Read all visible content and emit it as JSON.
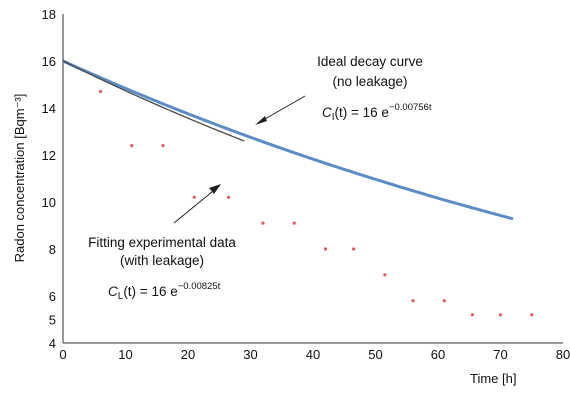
{
  "chart_data": {
    "type": "scatter",
    "xlabel": "Time [h]",
    "ylabel": "Radon concentration [Bqm⁻³]",
    "xlim": [
      0,
      80
    ],
    "ylim": [
      4,
      18
    ],
    "x_ticks": [
      "0",
      "10",
      "20",
      "30",
      "40",
      "50",
      "60",
      "70",
      "80"
    ],
    "y_ticks": [
      "4",
      "5",
      "6",
      "8",
      "10",
      "12",
      "14",
      "16",
      "18"
    ],
    "y_tick_values": [
      4,
      5,
      6,
      8,
      10,
      12,
      14,
      16,
      18
    ],
    "grid": false,
    "series": [
      {
        "kind": "points",
        "color": "#e05a5a",
        "x": [
          6,
          11,
          16,
          21,
          26.5,
          32,
          37,
          42,
          46.5,
          51.5,
          56,
          61,
          65.5,
          70,
          75
        ],
        "y": [
          14.7,
          12.4,
          12.4,
          10.2,
          10.2,
          9.1,
          9.1,
          8.0,
          8.0,
          6.9,
          5.8,
          5.8,
          5.2,
          5.2,
          5.2
        ]
      },
      {
        "kind": "fit",
        "color": "#4a4a4a",
        "amplitude": 16,
        "rate": 0.00825,
        "x_start": 0,
        "x_end": 29
      },
      {
        "kind": "ideal",
        "color": "#5b8cc6",
        "amplitude": 16,
        "rate": 0.00756,
        "x_start": 0,
        "x_end": 72
      }
    ],
    "annotations": {
      "ideal": {
        "line1": "Ideal decay curve",
        "line2": "(no leakage)",
        "formula_symbol": "C",
        "formula_sub": "I",
        "formula_arg": "(t) = 16 e",
        "formula_exp": "−0.00756t"
      },
      "fit": {
        "line1": "Fitting experimental data",
        "line2": "(with leakage)",
        "formula_symbol": "C",
        "formula_sub": "L",
        "formula_arg": "(t) = 16 e",
        "formula_exp": "−0.00825t"
      }
    }
  }
}
